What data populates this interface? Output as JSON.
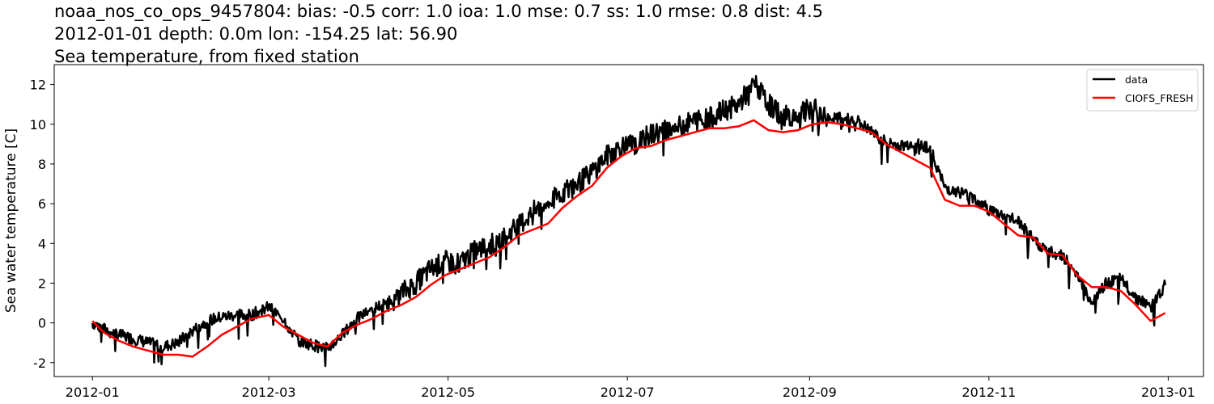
{
  "titles": {
    "line1": "noaa_nos_co_ops_9457804: bias: -0.5  corr: 1.0  ioa: 1.0  mse: 0.7  ss: 1.0  rmse: 0.8  dist: 4.5",
    "line2": "2012-01-01 depth: 0.0m lon: -154.25 lat: 56.90",
    "line3": "Sea temperature, from fixed station"
  },
  "chart_data": {
    "type": "line",
    "title": "Sea temperature, from fixed station",
    "xlabel": "",
    "ylabel": "Sea water temperature [C]",
    "xlim": [
      "2011-12-19",
      "2013-01-13"
    ],
    "ylim": [
      -2.7,
      13.0
    ],
    "x_tick_labels": [
      "2012-01",
      "2012-03",
      "2012-05",
      "2012-07",
      "2012-09",
      "2012-11",
      "2013-01"
    ],
    "y_tick_labels": [
      "-2",
      "0",
      "2",
      "4",
      "6",
      "8",
      "10",
      "12"
    ],
    "y_ticks": [
      -2,
      0,
      2,
      4,
      6,
      8,
      10,
      12
    ],
    "grid": false,
    "legend_position": "top-right",
    "series": [
      {
        "name": "data",
        "color": "#000000",
        "x": [
          "2012-01-01",
          "2012-01-05",
          "2012-01-10",
          "2012-01-15",
          "2012-01-20",
          "2012-01-25",
          "2012-01-30",
          "2012-02-04",
          "2012-02-09",
          "2012-02-14",
          "2012-02-19",
          "2012-02-24",
          "2012-03-01",
          "2012-03-06",
          "2012-03-11",
          "2012-03-16",
          "2012-03-21",
          "2012-03-26",
          "2012-03-31",
          "2012-04-05",
          "2012-04-10",
          "2012-04-15",
          "2012-04-20",
          "2012-04-25",
          "2012-04-30",
          "2012-05-05",
          "2012-05-10",
          "2012-05-15",
          "2012-05-20",
          "2012-05-25",
          "2012-05-30",
          "2012-06-04",
          "2012-06-09",
          "2012-06-14",
          "2012-06-19",
          "2012-06-24",
          "2012-06-29",
          "2012-07-04",
          "2012-07-09",
          "2012-07-14",
          "2012-07-19",
          "2012-07-24",
          "2012-07-29",
          "2012-08-03",
          "2012-08-08",
          "2012-08-13",
          "2012-08-18",
          "2012-08-23",
          "2012-08-28",
          "2012-09-02",
          "2012-09-07",
          "2012-09-12",
          "2012-09-17",
          "2012-09-22",
          "2012-09-27",
          "2012-10-02",
          "2012-10-07",
          "2012-10-12",
          "2012-10-17",
          "2012-10-22",
          "2012-10-27",
          "2012-11-01",
          "2012-11-06",
          "2012-11-11",
          "2012-11-16",
          "2012-11-21",
          "2012-11-26",
          "2012-12-01",
          "2012-12-06",
          "2012-12-11",
          "2012-12-16",
          "2012-12-21",
          "2012-12-26",
          "2012-12-31"
        ],
        "y": [
          0.0,
          -0.3,
          -0.6,
          -0.8,
          -1.0,
          -1.2,
          -1.0,
          -0.4,
          0.1,
          0.3,
          0.4,
          0.4,
          0.8,
          0.2,
          -0.9,
          -1.1,
          -1.3,
          -0.6,
          0.2,
          0.7,
          1.0,
          1.5,
          2.0,
          2.7,
          3.1,
          3.0,
          3.6,
          3.9,
          4.3,
          4.9,
          5.6,
          6.0,
          6.6,
          7.0,
          7.6,
          8.4,
          8.9,
          9.0,
          9.5,
          9.7,
          9.9,
          10.2,
          10.3,
          10.7,
          11.0,
          12.1,
          11.0,
          10.4,
          10.5,
          10.8,
          10.3,
          10.3,
          10.2,
          9.6,
          9.1,
          8.9,
          9.1,
          8.8,
          6.8,
          6.6,
          6.3,
          5.7,
          5.4,
          5.1,
          4.2,
          3.6,
          3.4,
          2.5,
          1.0,
          2.0,
          2.2,
          1.3,
          0.8,
          1.9
        ],
        "note_fluctuation": "high-frequency tidal variability"
      },
      {
        "name": "CIOFS_FRESH",
        "color": "#ff0000",
        "x": [
          "2012-01-01",
          "2012-01-05",
          "2012-01-10",
          "2012-01-15",
          "2012-01-20",
          "2012-01-25",
          "2012-01-30",
          "2012-02-04",
          "2012-02-09",
          "2012-02-14",
          "2012-02-19",
          "2012-02-24",
          "2012-03-01",
          "2012-03-06",
          "2012-03-11",
          "2012-03-16",
          "2012-03-21",
          "2012-03-26",
          "2012-03-31",
          "2012-04-05",
          "2012-04-10",
          "2012-04-15",
          "2012-04-20",
          "2012-04-25",
          "2012-04-30",
          "2012-05-05",
          "2012-05-10",
          "2012-05-15",
          "2012-05-20",
          "2012-05-25",
          "2012-05-30",
          "2012-06-04",
          "2012-06-09",
          "2012-06-14",
          "2012-06-19",
          "2012-06-24",
          "2012-06-29",
          "2012-07-04",
          "2012-07-09",
          "2012-07-14",
          "2012-07-19",
          "2012-07-24",
          "2012-07-29",
          "2012-08-03",
          "2012-08-08",
          "2012-08-13",
          "2012-08-18",
          "2012-08-23",
          "2012-08-28",
          "2012-09-02",
          "2012-09-07",
          "2012-09-12",
          "2012-09-17",
          "2012-09-22",
          "2012-09-27",
          "2012-10-02",
          "2012-10-07",
          "2012-10-12",
          "2012-10-17",
          "2012-10-22",
          "2012-10-27",
          "2012-11-01",
          "2012-11-06",
          "2012-11-11",
          "2012-11-16",
          "2012-11-21",
          "2012-11-26",
          "2012-12-01",
          "2012-12-06",
          "2012-12-11",
          "2012-12-16",
          "2012-12-21",
          "2012-12-26",
          "2012-12-31"
        ],
        "y": [
          0.1,
          -0.5,
          -0.9,
          -1.2,
          -1.4,
          -1.6,
          -1.6,
          -1.7,
          -1.2,
          -0.6,
          -0.2,
          0.2,
          0.4,
          -0.2,
          -0.6,
          -1.0,
          -1.2,
          -0.5,
          -0.1,
          0.2,
          0.6,
          0.9,
          1.3,
          1.9,
          2.4,
          2.7,
          3.0,
          3.3,
          3.8,
          4.4,
          4.7,
          5.0,
          5.8,
          6.4,
          6.9,
          7.8,
          8.4,
          8.8,
          8.9,
          9.2,
          9.4,
          9.6,
          9.8,
          9.8,
          9.9,
          10.2,
          9.7,
          9.6,
          9.7,
          10.0,
          10.1,
          10.0,
          9.8,
          9.6,
          9.0,
          8.6,
          8.2,
          7.8,
          6.2,
          5.9,
          5.9,
          5.6,
          5.0,
          4.4,
          4.3,
          3.5,
          3.4,
          2.4,
          1.8,
          1.8,
          1.6,
          0.9,
          0.1,
          0.5
        ]
      }
    ]
  }
}
